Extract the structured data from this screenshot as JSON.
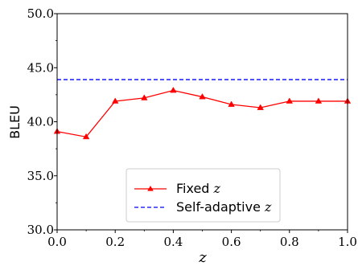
{
  "chart_data": {
    "type": "line",
    "xlabel": "z",
    "ylabel": "BLEU",
    "xlim": [
      0.0,
      1.0
    ],
    "ylim": [
      30.0,
      50.0
    ],
    "xticks": [
      "0.0",
      "0.2",
      "0.4",
      "0.6",
      "0.8",
      "1.0"
    ],
    "yticks": [
      "30.0",
      "35.0",
      "40.0",
      "45.0",
      "50.0"
    ],
    "grid": false,
    "legend_position": "lower-center",
    "series": [
      {
        "name": "Fixed z",
        "legend_text": "Fixed",
        "legend_var": "z",
        "color": "#ff0000",
        "style": "solid",
        "marker": "triangle",
        "x": [
          0.0,
          0.1,
          0.2,
          0.3,
          0.4,
          0.5,
          0.6,
          0.7,
          0.8,
          0.9,
          1.0
        ],
        "y": [
          39.1,
          38.6,
          41.9,
          42.2,
          42.9,
          42.3,
          41.6,
          41.3,
          41.9,
          41.9,
          41.9
        ]
      },
      {
        "name": "Self-adaptive z",
        "legend_text": "Self-adaptive",
        "legend_var": "z",
        "color": "#0000ff",
        "style": "dashed",
        "marker": "none",
        "x": [
          0.0,
          1.0
        ],
        "y": [
          43.9,
          43.9
        ]
      }
    ]
  }
}
